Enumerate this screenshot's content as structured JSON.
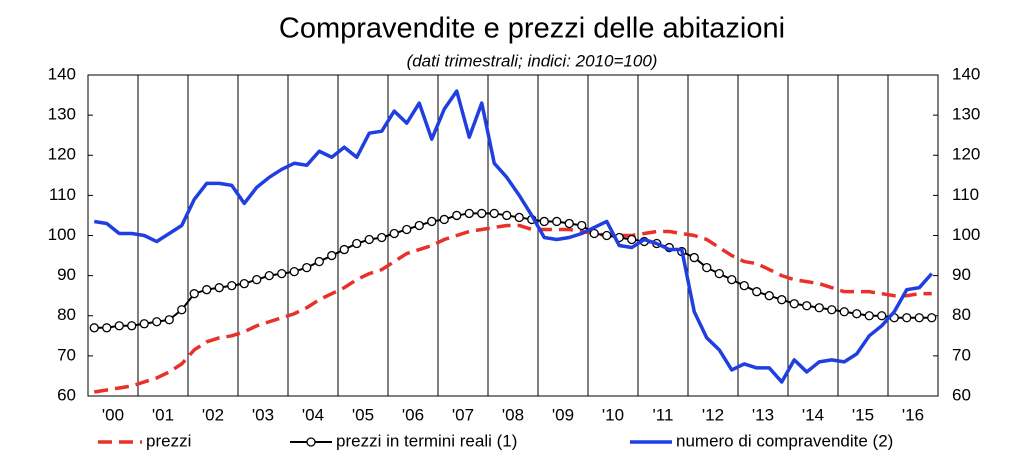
{
  "chart_data": {
    "type": "line",
    "title": "Compravendite e prezzi delle abitazioni",
    "subtitle": "(dati trimestrali; indici: 2010=100)",
    "categories": [
      null,
      "'00",
      null,
      null,
      null,
      "'01",
      null,
      null,
      null,
      "'02",
      null,
      null,
      null,
      "'03",
      null,
      null,
      null,
      "'04",
      null,
      null,
      null,
      "'05",
      null,
      null,
      null,
      "'06",
      null,
      null,
      null,
      "'07",
      null,
      null,
      null,
      "'08",
      null,
      null,
      null,
      "'09",
      null,
      null,
      null,
      "'10",
      null,
      null,
      null,
      "'11",
      null,
      null,
      null,
      "'12",
      null,
      null,
      null,
      "'13",
      null,
      null,
      null,
      "'14",
      null,
      null,
      null,
      "'15",
      null,
      null,
      null,
      "'16",
      null,
      null
    ],
    "series": [
      {
        "name": "prezzi",
        "color": "#e8312a",
        "style": "dashed",
        "values": [
          61,
          61.5,
          62,
          62.5,
          63.5,
          64.5,
          66,
          68,
          71.5,
          73.5,
          74.5,
          75,
          76,
          77.5,
          78.5,
          79.5,
          80.5,
          82,
          84,
          85.5,
          87,
          89,
          90.5,
          91.5,
          93.5,
          95.5,
          96.5,
          97.5,
          99,
          100,
          101,
          101.5,
          102,
          102.5,
          102.5,
          101.5,
          101.5,
          101.5,
          101.5,
          101,
          100.5,
          100,
          100,
          100,
          100.5,
          101,
          101,
          100.5,
          100,
          99,
          97,
          95,
          93.5,
          93,
          91.5,
          90,
          89,
          88.5,
          88,
          87,
          86,
          86,
          86,
          85.5,
          85,
          85,
          85.5,
          85.5
        ]
      },
      {
        "name": "prezzi in termini reali (1)",
        "color": "#000000",
        "style": "markers",
        "values": [
          77,
          77,
          77.5,
          77.5,
          78,
          78.5,
          79,
          81.5,
          85.5,
          86.5,
          87,
          87.5,
          88,
          89,
          90,
          90.5,
          91,
          92,
          93.5,
          95,
          96.5,
          98,
          99,
          99.5,
          100.5,
          101.5,
          102.5,
          103.5,
          104,
          105,
          105.5,
          105.5,
          105.5,
          105,
          104.5,
          104,
          103.5,
          103.5,
          103,
          102.5,
          100.5,
          100,
          99.5,
          99,
          98.5,
          98,
          97,
          96,
          94.5,
          92,
          90.5,
          89,
          87.5,
          86,
          85,
          84,
          83,
          82.5,
          82,
          81.5,
          81,
          80.5,
          80,
          80,
          79.5,
          79.5,
          79.5,
          79.5
        ]
      },
      {
        "name": "numero di compravendite (2)",
        "color": "#1f3fe0",
        "style": "solid",
        "values": [
          103.5,
          103,
          100.5,
          100.5,
          100,
          98.5,
          100.5,
          102.5,
          109,
          113,
          113,
          112.5,
          108,
          112,
          114.5,
          116.5,
          118,
          117.5,
          121,
          119.5,
          122,
          119.5,
          125.5,
          126,
          131,
          128,
          133,
          124,
          131.5,
          136,
          124.5,
          133,
          118,
          114.5,
          110,
          105,
          99.5,
          99,
          99.5,
          100.5,
          102,
          103.5,
          97.5,
          97,
          99,
          98,
          96.5,
          96.5,
          81,
          74.5,
          71.5,
          66.5,
          68,
          67,
          67,
          63.5,
          69,
          66,
          68.5,
          69,
          68.5,
          70.5,
          75,
          77.5,
          81,
          86.5,
          87,
          90.5
        ]
      }
    ],
    "ylim": [
      60,
      140
    ],
    "yticks": [
      60,
      70,
      80,
      90,
      100,
      110,
      120,
      130,
      140
    ],
    "y2lim": [
      60,
      140
    ],
    "y2ticks": [
      60,
      70,
      80,
      90,
      100,
      110,
      120,
      130,
      140
    ],
    "legend": "bottom"
  }
}
